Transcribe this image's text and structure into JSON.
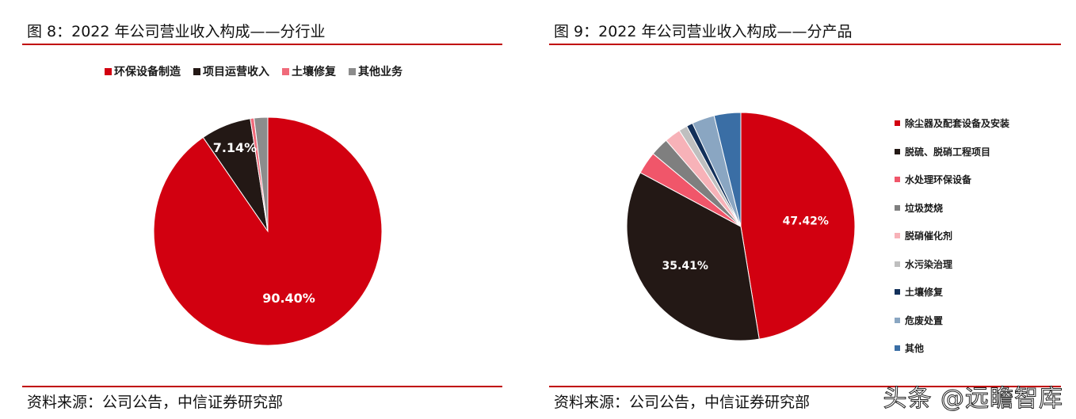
{
  "left": {
    "title": "图 8：2022 年公司营业收入构成——分行业",
    "source": "资料来源：公司公告，中信证券研究部"
  },
  "right": {
    "title": "图 9：2022 年公司营业收入构成——分产品",
    "source": "资料来源：公司公告，中信证券研究部"
  },
  "watermark": "头条 @远瞻智库",
  "chart_data": [
    {
      "type": "pie",
      "title": "图 8：2022 年公司营业收入构成——分行业",
      "legend_position": "top",
      "categories": [
        "环保设备制造",
        "项目运营收入",
        "土壤修复",
        "其他业务"
      ],
      "values": [
        90.4,
        7.14,
        0.53,
        1.93
      ],
      "data_labels": [
        "90.40%",
        "7.14%",
        "",
        ""
      ],
      "colors": [
        "#d20010",
        "#231815",
        "#f06a7a",
        "#8c8c8c"
      ]
    },
    {
      "type": "pie",
      "title": "图 9：2022 年公司营业收入构成——分产品",
      "legend_position": "right",
      "categories": [
        "除尘器及配套设备及安装",
        "脱硫、脱硝工程项目",
        "水处理环保设备",
        "垃圾焚烧",
        "脱硝催化剂",
        "水污染治理",
        "土壤修复",
        "危废处置",
        "其他"
      ],
      "values": [
        47.42,
        35.41,
        3.2,
        2.6,
        2.3,
        1.2,
        0.9,
        3.2,
        3.77
      ],
      "data_labels": [
        "47.42%",
        "35.41%",
        "",
        "",
        "",
        "",
        "",
        "",
        ""
      ],
      "colors": [
        "#d20010",
        "#231815",
        "#f0566a",
        "#7f7f7f",
        "#f7b2b8",
        "#bfbfbf",
        "#12305a",
        "#8aa6c2",
        "#3a6ea5"
      ]
    }
  ]
}
